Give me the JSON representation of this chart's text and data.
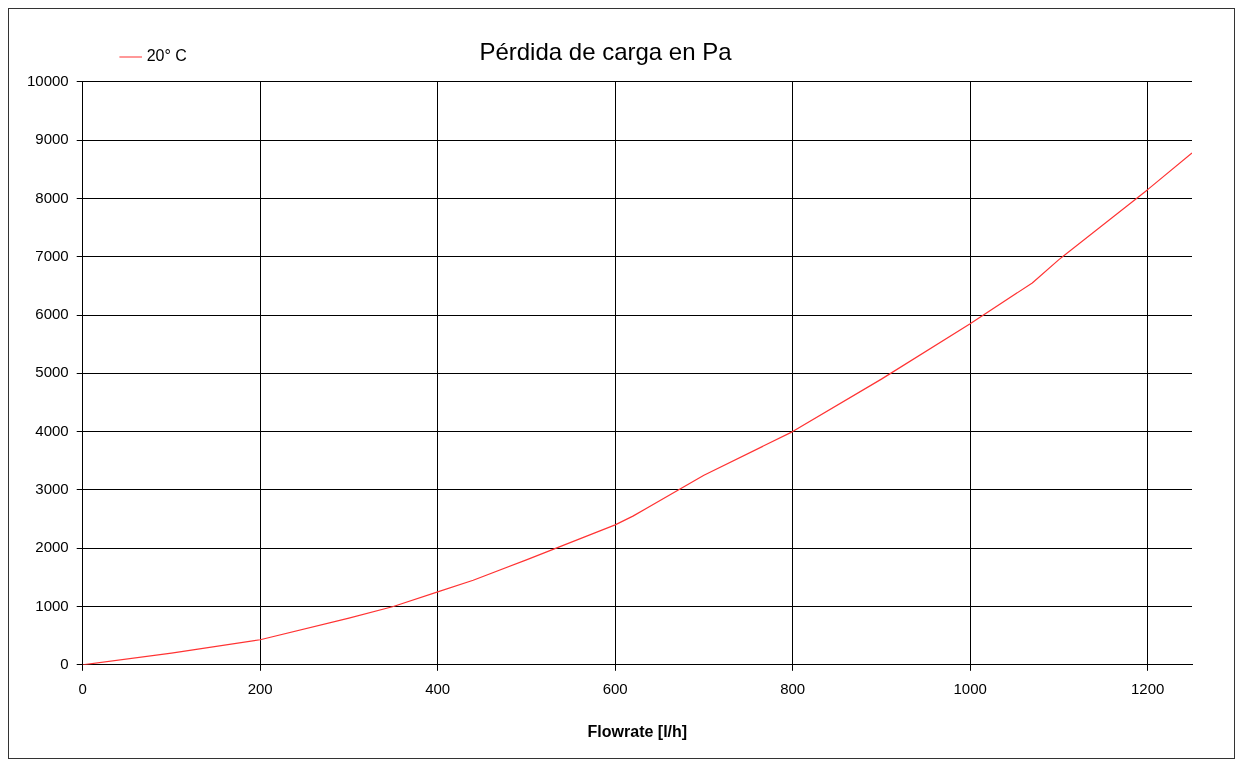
{
  "chart_data": {
    "type": "line",
    "title": "Pérdida de carga en Pa",
    "xlabel": "Flowrate [l/h]",
    "series": [
      {
        "name": "20° C",
        "color": "#ff3333",
        "x": [
          0,
          100,
          200,
          300,
          350,
          400,
          440,
          500,
          600,
          620,
          700,
          800,
          900,
          1000,
          1070,
          1100,
          1200,
          1250
        ],
        "values": [
          0,
          200,
          430,
          800,
          1000,
          1250,
          1450,
          1800,
          2400,
          2550,
          3250,
          4000,
          4900,
          5850,
          6550,
          6950,
          8150,
          8780
        ]
      }
    ],
    "xlim": [
      0,
      1250
    ],
    "xticks": [
      0,
      200,
      400,
      600,
      800,
      1000,
      1200
    ],
    "ylim": [
      0,
      10000
    ],
    "yticks": [
      0,
      1000,
      2000,
      3000,
      4000,
      5000,
      6000,
      7000,
      8000,
      9000,
      10000
    ],
    "grid": true,
    "legend": "top left",
    "marker": "none",
    "line_style": "solid"
  }
}
